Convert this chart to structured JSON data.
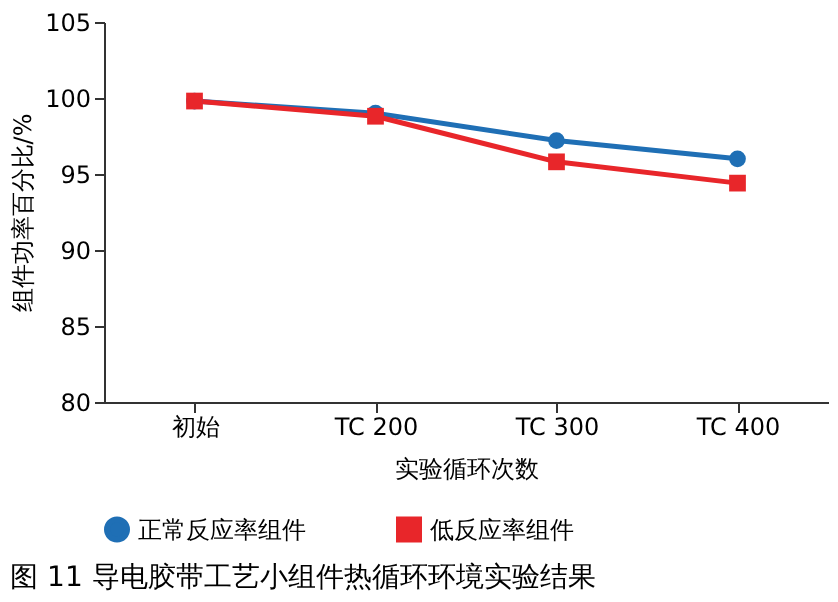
{
  "chart_data": {
    "type": "line",
    "xlabel": "实验循环次数",
    "ylabel": "组件功率百分比/%",
    "categories": [
      "初始",
      "TC 200",
      "TC 300",
      "TC 400"
    ],
    "series": [
      {
        "name": "正常反应率组件",
        "color": "#1f6fb5",
        "marker": "circle",
        "values": [
          99.8,
          99.0,
          97.2,
          96.0
        ]
      },
      {
        "name": "低反应率组件",
        "color": "#e8262a",
        "marker": "square",
        "values": [
          99.8,
          98.8,
          95.8,
          94.4
        ]
      }
    ],
    "ylim": [
      80,
      105
    ],
    "yticks": [
      80,
      85,
      90,
      95,
      100,
      105
    ],
    "grid": false,
    "legend": "bottom",
    "line_style": "solid",
    "annotations": [
      "图 11  导电胶带工艺小组件热循环环境实验结果"
    ]
  }
}
